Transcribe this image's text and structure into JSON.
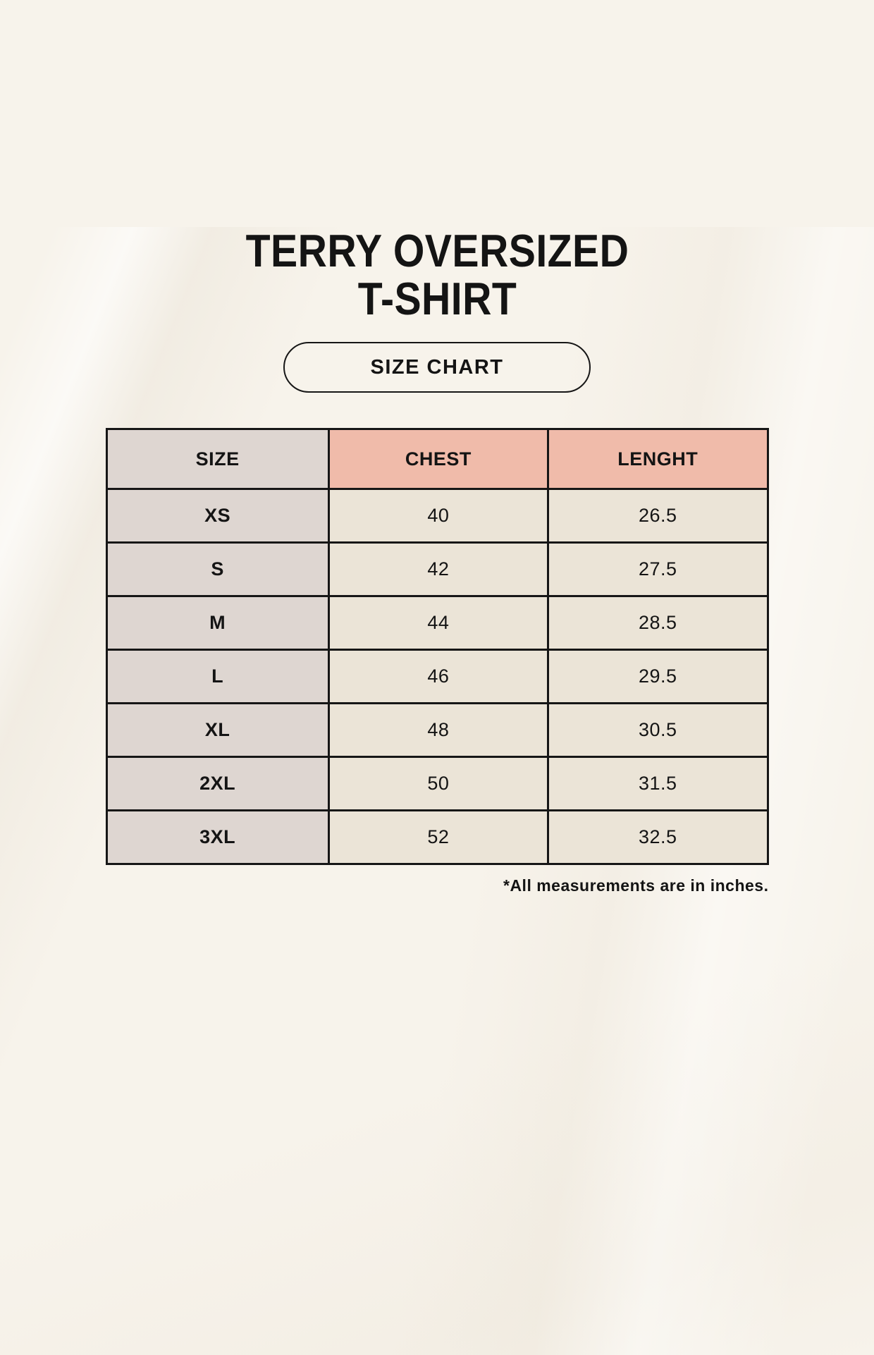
{
  "page": {
    "title_line1": "TERRY OVERSIZED",
    "title_line2": "T-SHIRT",
    "badge_label": "SIZE CHART",
    "footnote": "*All measurements are in inches."
  },
  "chart_data": {
    "type": "table",
    "title": "TERRY OVERSIZED T-SHIRT — SIZE CHART",
    "columns": [
      "SIZE",
      "CHEST",
      "LENGHT"
    ],
    "rows": [
      [
        "XS",
        "40",
        "26.5"
      ],
      [
        "S",
        "42",
        "27.5"
      ],
      [
        "M",
        "44",
        "28.5"
      ],
      [
        "L",
        "46",
        "29.5"
      ],
      [
        "XL",
        "48",
        "30.5"
      ],
      [
        "2XL",
        "50",
        "31.5"
      ],
      [
        "3XL",
        "52",
        "32.5"
      ]
    ],
    "units_note": "*All measurements are in inches."
  },
  "colors": {
    "background": "#f7f3eb",
    "size_column_bg": "#ded6d1",
    "measure_header_bg": "#f0bbaa",
    "value_cell_bg": "#ebe4d7",
    "border": "#161616",
    "text": "#141414"
  }
}
